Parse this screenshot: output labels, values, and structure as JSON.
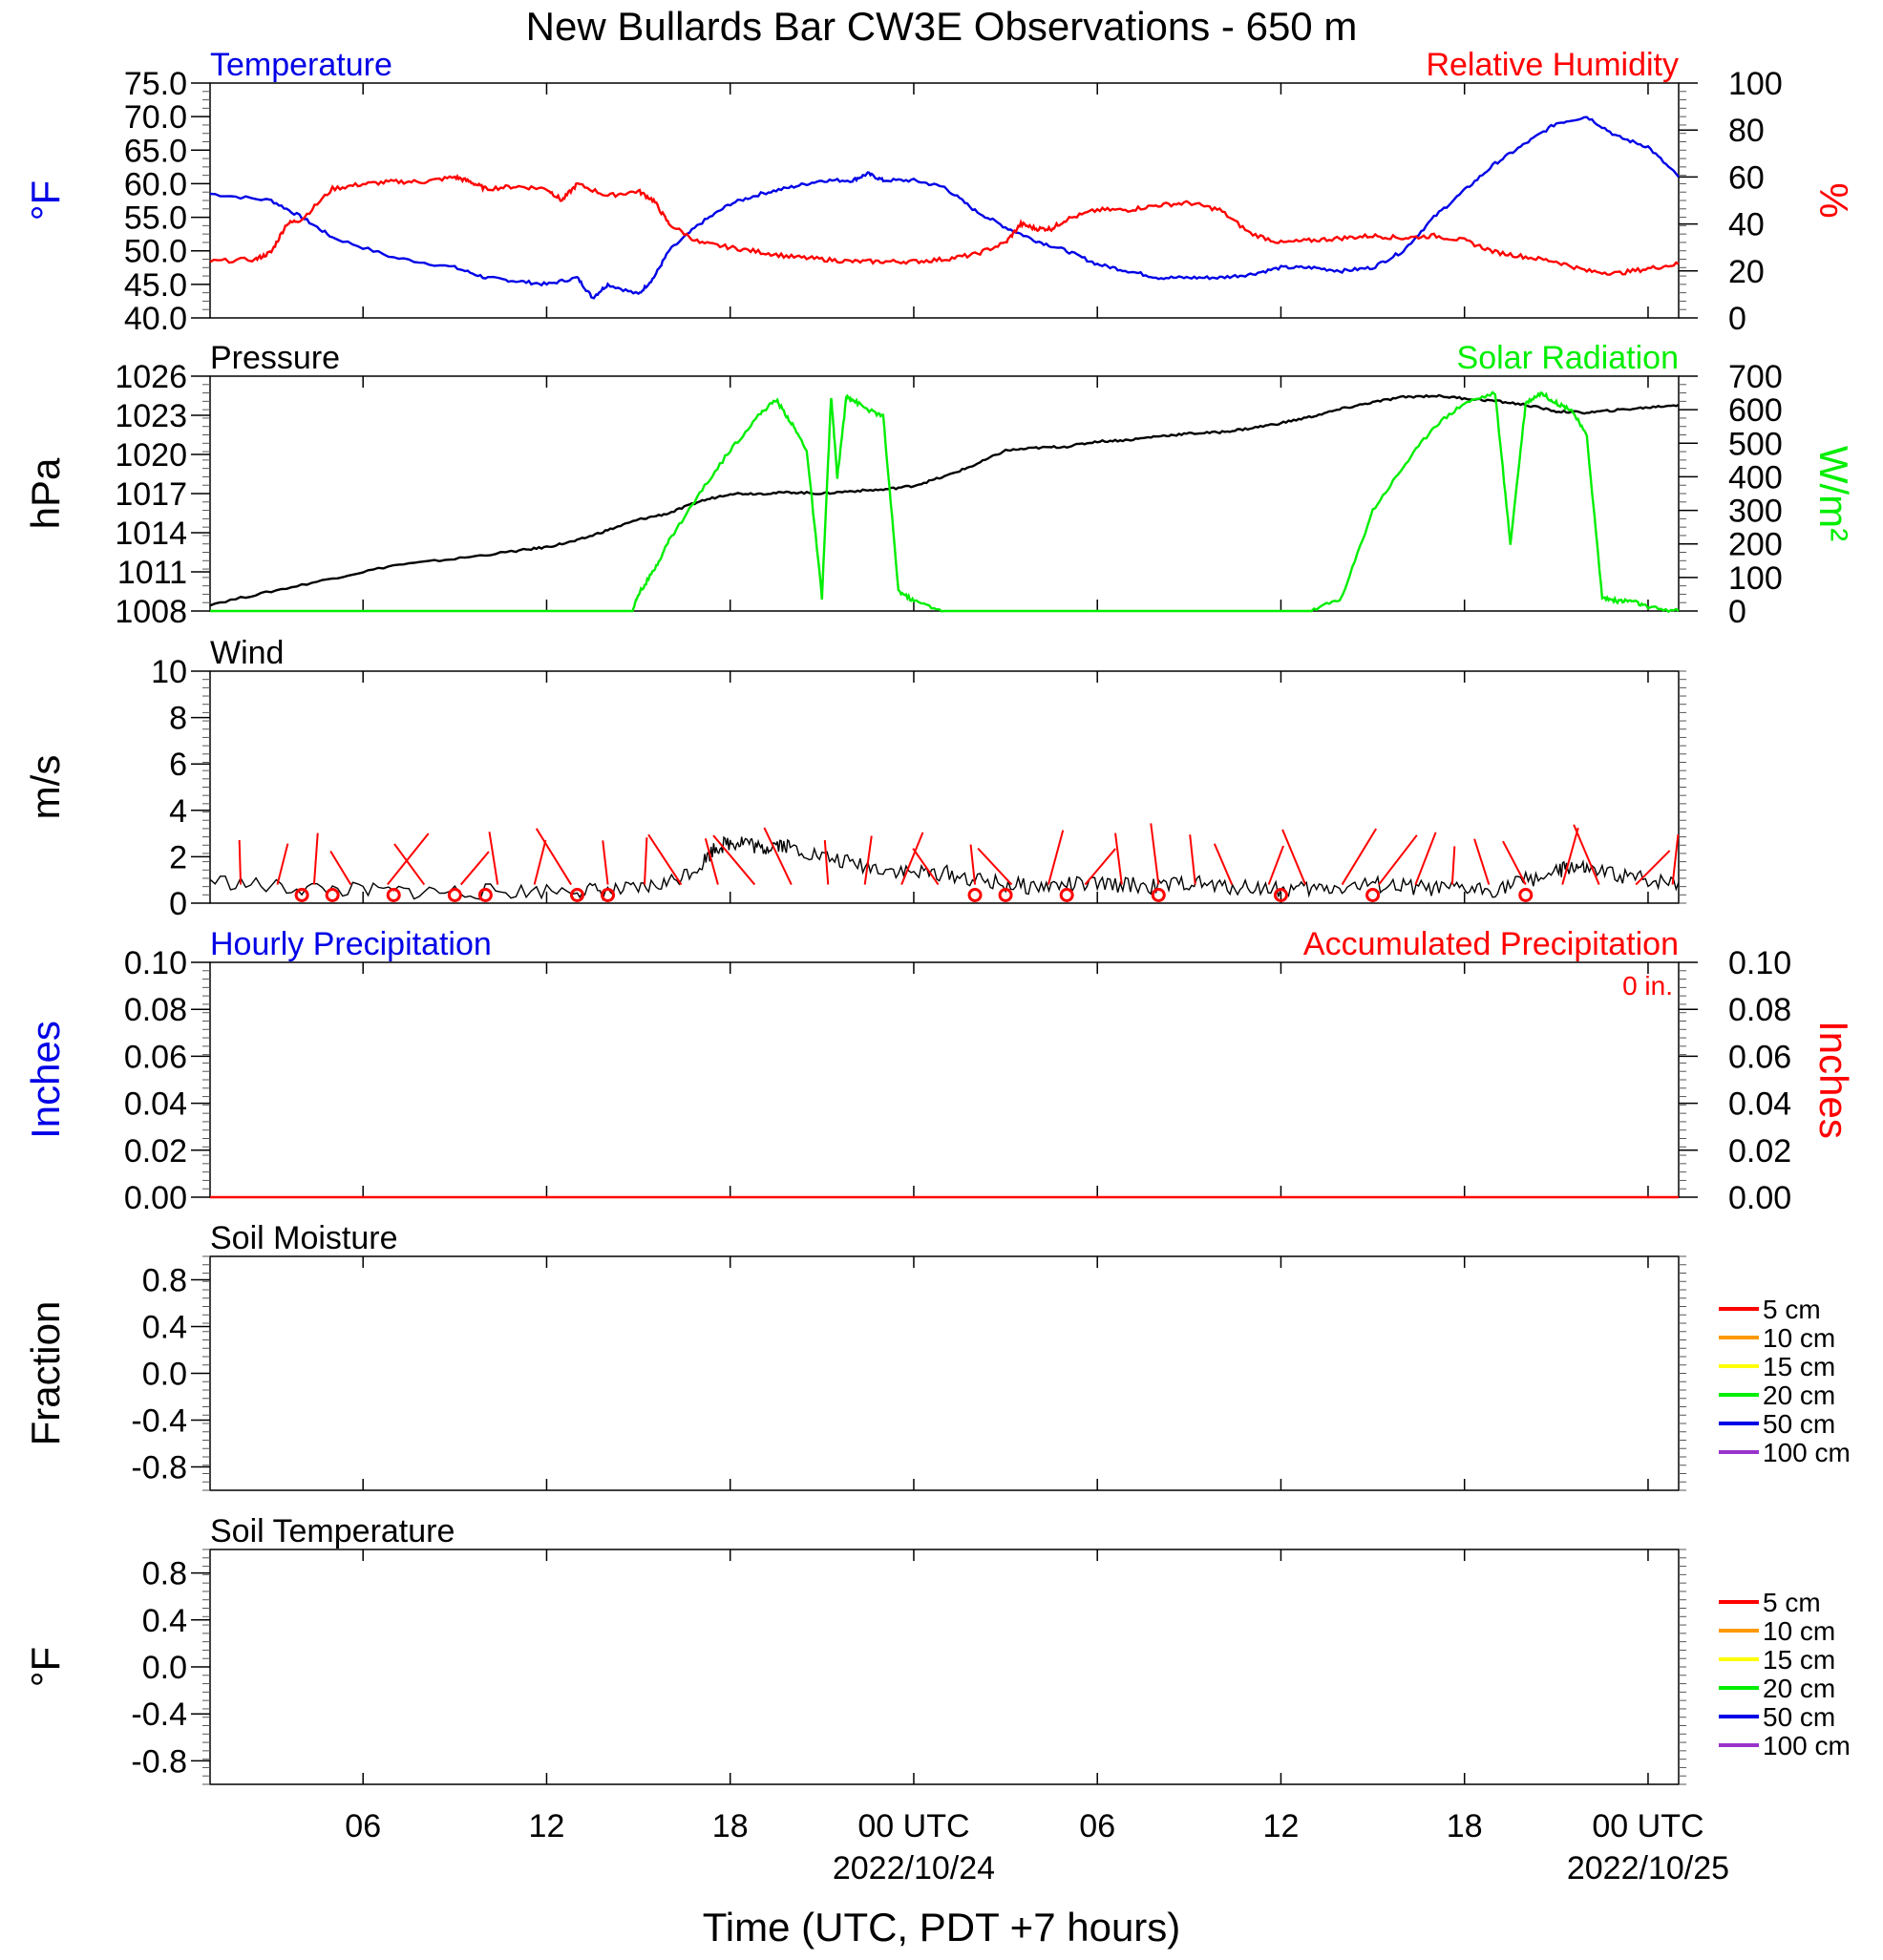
{
  "title": "New Bullards Bar CW3E Observations - 650 m",
  "xlabel": "Time (UTC, PDT +7 hours)",
  "x_axis": {
    "range_hours": [
      0,
      48
    ],
    "tick_hours": [
      5,
      11,
      17,
      23,
      29,
      35,
      41,
      47
    ],
    "tick_labels": [
      "06",
      "12",
      "18",
      "00 UTC",
      "06",
      "12",
      "18",
      "00 UTC"
    ],
    "date_labels": [
      "2022/10/24",
      "2022/10/25"
    ]
  },
  "colors": {
    "blue": "#0000e6",
    "red": "#ff0000",
    "green": "#00ee00",
    "black": "#000000",
    "orange": "#ff9900",
    "yellow": "#ffff00",
    "purple": "#9933cc"
  },
  "chart_data": [
    {
      "type": "line",
      "id": "temp_rh",
      "left_title": "Temperature",
      "right_title": "Relative Humidity",
      "ylabel_left": "°F",
      "ylabel_right": "%",
      "ylim_left": [
        40,
        75
      ],
      "yticks_left": [
        "75.0",
        "70.0",
        "65.0",
        "60.0",
        "55.0",
        "50.0",
        "45.0",
        "40.0"
      ],
      "ylim_right": [
        0,
        100
      ],
      "yticks_right": [
        "100",
        "80",
        "60",
        "40",
        "20",
        "0"
      ],
      "series": [
        {
          "axis": "left",
          "color": "#0000e6",
          "x": [
            0,
            2,
            3,
            4,
            6,
            8,
            9,
            10,
            11,
            12,
            12.5,
            13,
            14,
            14.5,
            15,
            16,
            17,
            18,
            19,
            20,
            21,
            21.5,
            22,
            23,
            24,
            25,
            26,
            27,
            28,
            29,
            30,
            31,
            32,
            33,
            34,
            35,
            36,
            37,
            38,
            39,
            40,
            41,
            42,
            43,
            44,
            45,
            46,
            47,
            48
          ],
          "y": [
            58.5,
            57.5,
            55,
            52,
            49,
            47.5,
            46,
            45.5,
            45,
            46,
            43,
            45,
            43.5,
            46,
            50,
            54,
            57,
            58.5,
            59.5,
            60.5,
            60.5,
            61.5,
            60.5,
            60.5,
            59.5,
            56,
            53.5,
            51.5,
            50,
            48,
            47,
            46,
            46,
            46,
            46.5,
            47.5,
            47.5,
            47,
            47.5,
            50,
            55,
            59,
            63,
            66,
            69,
            70,
            67,
            65.5,
            61
          ]
        },
        {
          "axis": "right",
          "color": "#ff0000",
          "x": [
            0,
            1.5,
            2,
            2.5,
            3,
            4,
            5,
            6,
            7,
            8,
            8.5,
            9,
            10,
            11,
            11.5,
            12,
            13,
            14,
            14.5,
            15,
            16,
            17,
            18,
            19,
            20,
            21,
            22,
            23,
            24,
            25,
            26,
            26.5,
            27,
            27.5,
            28,
            29,
            30,
            31,
            32,
            33,
            34,
            35,
            36,
            37,
            38,
            39,
            40,
            41,
            42,
            43,
            44,
            45,
            46,
            47,
            48
          ],
          "y": [
            24,
            25,
            28,
            40,
            42,
            55,
            57,
            58,
            58,
            60,
            58,
            55,
            56,
            55,
            50,
            57,
            52,
            54,
            50,
            40,
            32,
            30,
            28,
            26,
            25,
            24,
            24,
            24,
            25,
            27,
            32,
            40,
            38,
            38,
            42,
            46,
            46,
            48,
            49,
            46,
            36,
            32,
            33,
            34,
            35,
            34,
            35,
            33,
            28,
            26,
            24,
            20,
            19,
            21,
            23
          ]
        }
      ]
    },
    {
      "type": "line",
      "id": "pres_solar",
      "left_title": "Pressure",
      "right_title": "Solar Radiation",
      "ylabel_left": "hPa",
      "ylabel_right": "W/m²",
      "ylim_left": [
        1008,
        1026
      ],
      "yticks_left": [
        "1026",
        "1023",
        "1020",
        "1017",
        "1014",
        "1011",
        "1008"
      ],
      "ylim_right": [
        0,
        700
      ],
      "yticks_right": [
        "700",
        "600",
        "500",
        "400",
        "300",
        "200",
        "100",
        "0"
      ],
      "series": [
        {
          "axis": "left",
          "color": "#000000",
          "x": [
            0,
            2,
            4,
            6,
            8,
            10,
            11,
            12,
            13,
            14,
            15,
            16,
            17,
            18,
            19,
            20,
            21,
            22,
            23,
            24,
            25,
            26,
            27,
            28,
            29,
            30,
            31,
            32,
            33,
            34,
            35,
            36,
            37,
            38,
            39,
            40,
            41,
            42,
            43,
            44,
            45,
            46,
            47,
            48
          ],
          "y": [
            1008.5,
            1009.5,
            1010.5,
            1011.5,
            1012,
            1012.6,
            1012.9,
            1013.4,
            1014.2,
            1015,
            1015.5,
            1016.4,
            1017,
            1017,
            1017.1,
            1017,
            1017.2,
            1017.3,
            1017.6,
            1018.3,
            1019.2,
            1020.3,
            1020.5,
            1020.6,
            1021,
            1021.1,
            1021.4,
            1021.6,
            1021.7,
            1022,
            1022.4,
            1022.9,
            1023.5,
            1024,
            1024.4,
            1024.5,
            1024.3,
            1024.1,
            1023.8,
            1023.3,
            1023.2,
            1023.4,
            1023.6,
            1023.8
          ]
        },
        {
          "axis": "right",
          "color": "#00ee00",
          "x": [
            0,
            13.8,
            14,
            14.5,
            15,
            16,
            17,
            18,
            18.5,
            19,
            19.5,
            20,
            20.3,
            20.5,
            20.8,
            21,
            21.5,
            22,
            22.5,
            23,
            24,
            25,
            26,
            36,
            37,
            38,
            39,
            40,
            41,
            42,
            42.5,
            43,
            43.5,
            44,
            44.5,
            45,
            45.5,
            46,
            46.5,
            47,
            48
          ],
          "y": [
            0,
            0,
            50,
            120,
            210,
            350,
            480,
            590,
            630,
            560,
            480,
            40,
            640,
            400,
            640,
            630,
            600,
            580,
            60,
            30,
            0,
            0,
            0,
            0,
            40,
            300,
            430,
            550,
            620,
            650,
            200,
            620,
            650,
            620,
            600,
            520,
            40,
            30,
            30,
            10,
            0
          ]
        }
      ]
    },
    {
      "type": "line",
      "id": "wind",
      "left_title": "Wind",
      "ylabel_left": "m/s",
      "ylim_left": [
        0,
        10
      ],
      "yticks_left": [
        "10",
        "8",
        "6",
        "4",
        "2",
        "0"
      ],
      "series": [
        {
          "axis": "left",
          "color": "#000000",
          "x": [
            0,
            2,
            4,
            6,
            8,
            10,
            12,
            13,
            14,
            15,
            16,
            16.5,
            17,
            17.5,
            18,
            18.5,
            19,
            20,
            21,
            22,
            23,
            24,
            25,
            26,
            27,
            28,
            29,
            30,
            31,
            32,
            33,
            34,
            35,
            36,
            37,
            38,
            39,
            40,
            41,
            42,
            43,
            44,
            44.5,
            45,
            46,
            47,
            48
          ],
          "y": [
            1,
            0.7,
            0.6,
            0.5,
            0.5,
            0.5,
            0.6,
            0.5,
            0.6,
            0.9,
            1.6,
            2.4,
            2.6,
            2.7,
            2.3,
            2.6,
            2.4,
            2.0,
            1.7,
            1.5,
            1.3,
            1.3,
            1.0,
            0.8,
            0.7,
            0.8,
            0.8,
            0.8,
            0.7,
            0.9,
            0.7,
            0.7,
            0.6,
            0.6,
            0.7,
            0.8,
            0.7,
            0.6,
            0.6,
            0.6,
            1.0,
            1.3,
            1.6,
            1.4,
            1.2,
            1.0,
            0.9
          ]
        }
      ],
      "calm_marker_hours": [
        3,
        4,
        6,
        8,
        9,
        12,
        13,
        25,
        26,
        28,
        31,
        35,
        38,
        43
      ]
    },
    {
      "type": "line",
      "id": "precip",
      "left_title": "Hourly Precipitation",
      "right_title": "Accumulated Precipitation",
      "accum_label": "0 in.",
      "ylabel_left": "Inches",
      "ylabel_right": "Inches",
      "ylim_left": [
        0,
        0.1
      ],
      "yticks_left": [
        "0.10",
        "0.08",
        "0.06",
        "0.04",
        "0.02",
        "0.00"
      ],
      "ylim_right": [
        0,
        0.1
      ],
      "yticks_right": [
        "0.10",
        "0.08",
        "0.06",
        "0.04",
        "0.02",
        "0.00"
      ],
      "series": [
        {
          "axis": "left",
          "color": "#ff0000",
          "x": [
            0,
            48
          ],
          "y": [
            0,
            0
          ]
        }
      ]
    },
    {
      "type": "line",
      "id": "soil_moist",
      "left_title": "Soil Moisture",
      "ylabel_left": "Fraction",
      "ylim_left": [
        -1,
        1
      ],
      "yticks_left": [
        "0.8",
        "0.4",
        "0.0",
        "-0.4",
        "-0.8"
      ],
      "ytick_values": [
        0.8,
        0.4,
        0,
        -0.4,
        -0.8
      ],
      "legend": [
        "5 cm",
        "10 cm",
        "15 cm",
        "20 cm",
        "50 cm",
        "100 cm"
      ],
      "series": []
    },
    {
      "type": "line",
      "id": "soil_temp",
      "left_title": "Soil Temperature",
      "ylabel_left": "°F",
      "ylim_left": [
        -1,
        1
      ],
      "yticks_left": [
        "0.8",
        "0.4",
        "0.0",
        "-0.4",
        "-0.8"
      ],
      "ytick_values": [
        0.8,
        0.4,
        0,
        -0.4,
        -0.8
      ],
      "legend": [
        "5 cm",
        "10 cm",
        "15 cm",
        "20 cm",
        "50 cm",
        "100 cm"
      ],
      "series": []
    }
  ]
}
